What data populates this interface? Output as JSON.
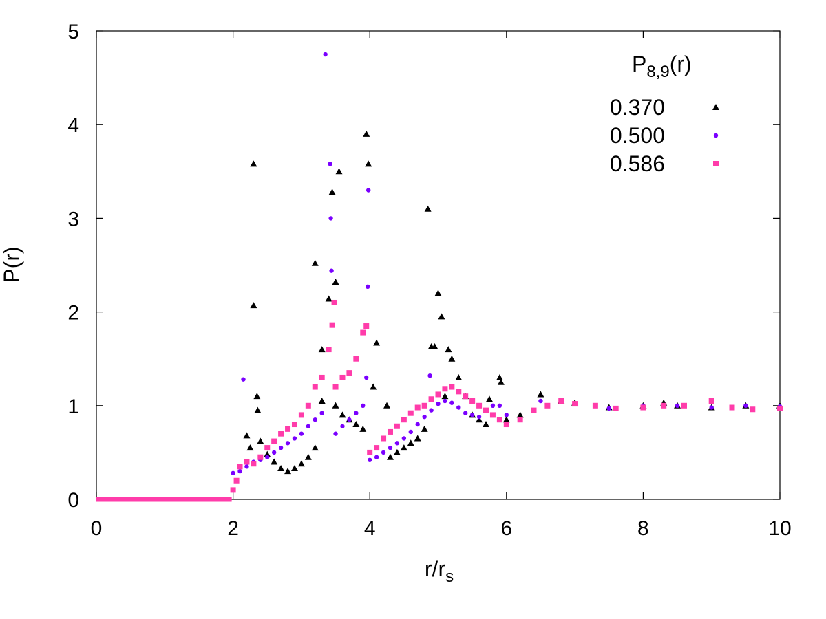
{
  "chart_data": {
    "type": "scatter",
    "xlabel": "r/r",
    "xlabel_sub": "s",
    "ylabel": "P(r)",
    "xlim": [
      0,
      10
    ],
    "ylim": [
      0,
      5
    ],
    "x_ticks": [
      0,
      2,
      4,
      6,
      8,
      10
    ],
    "y_ticks": [
      0,
      1,
      2,
      3,
      4,
      5
    ],
    "x_tick_labels": [
      "0",
      "2",
      "4",
      "6",
      "8",
      "10"
    ],
    "y_tick_labels": [
      "0",
      "1",
      "2",
      "3",
      "4",
      "5"
    ],
    "grid": false,
    "legend_position": "top-right",
    "legend_title": "P",
    "legend_title_sub": "8,9",
    "legend_title_suffix": "(r)",
    "series": [
      {
        "name": "0.370",
        "marker": "triangle",
        "color": "#000000",
        "points": [
          [
            2.3,
            3.58
          ],
          [
            2.3,
            2.07
          ],
          [
            2.35,
            1.1
          ],
          [
            2.36,
            0.95
          ],
          [
            2.2,
            0.68
          ],
          [
            2.25,
            0.55
          ],
          [
            2.4,
            0.62
          ],
          [
            2.5,
            0.48
          ],
          [
            2.6,
            0.4
          ],
          [
            2.7,
            0.33
          ],
          [
            2.8,
            0.3
          ],
          [
            2.9,
            0.33
          ],
          [
            3.0,
            0.38
          ],
          [
            3.1,
            0.45
          ],
          [
            3.2,
            0.55
          ],
          [
            3.2,
            2.52
          ],
          [
            3.3,
            1.05
          ],
          [
            3.3,
            1.6
          ],
          [
            3.4,
            2.14
          ],
          [
            3.45,
            3.28
          ],
          [
            3.5,
            2.32
          ],
          [
            3.55,
            3.5
          ],
          [
            3.5,
            1.0
          ],
          [
            3.6,
            0.9
          ],
          [
            3.7,
            0.85
          ],
          [
            3.8,
            0.8
          ],
          [
            3.9,
            0.75
          ],
          [
            3.95,
            3.9
          ],
          [
            3.98,
            3.58
          ],
          [
            4.05,
            1.2
          ],
          [
            4.1,
            1.67
          ],
          [
            4.25,
            1.0
          ],
          [
            4.3,
            0.45
          ],
          [
            4.4,
            0.5
          ],
          [
            4.5,
            0.55
          ],
          [
            4.6,
            0.6
          ],
          [
            4.7,
            0.65
          ],
          [
            4.8,
            0.75
          ],
          [
            4.85,
            3.1
          ],
          [
            4.9,
            1.63
          ],
          [
            4.95,
            1.63
          ],
          [
            5.0,
            2.2
          ],
          [
            5.05,
            1.95
          ],
          [
            5.1,
            1.1
          ],
          [
            5.15,
            1.6
          ],
          [
            5.2,
            1.5
          ],
          [
            5.3,
            1.3
          ],
          [
            5.4,
            1.1
          ],
          [
            5.5,
            0.9
          ],
          [
            5.6,
            0.85
          ],
          [
            5.7,
            0.8
          ],
          [
            5.75,
            1.07
          ],
          [
            5.9,
            1.3
          ],
          [
            5.92,
            1.25
          ],
          [
            6.0,
            0.85
          ],
          [
            6.2,
            0.9
          ],
          [
            6.5,
            1.12
          ],
          [
            6.8,
            1.05
          ],
          [
            7.0,
            1.03
          ],
          [
            7.5,
            0.98
          ],
          [
            8.0,
            1.0
          ],
          [
            8.3,
            1.03
          ],
          [
            8.5,
            1.0
          ],
          [
            9.0,
            0.98
          ],
          [
            9.5,
            1.0
          ],
          [
            10.0,
            1.0
          ]
        ]
      },
      {
        "name": "0.500",
        "marker": "circle",
        "color": "#7a00ff",
        "points": [
          [
            2.0,
            0.28
          ],
          [
            2.1,
            0.3
          ],
          [
            2.15,
            1.28
          ],
          [
            2.2,
            0.35
          ],
          [
            2.3,
            0.4
          ],
          [
            2.4,
            0.42
          ],
          [
            2.5,
            0.45
          ],
          [
            2.6,
            0.5
          ],
          [
            2.7,
            0.55
          ],
          [
            2.8,
            0.6
          ],
          [
            2.9,
            0.65
          ],
          [
            3.0,
            0.7
          ],
          [
            3.1,
            0.78
          ],
          [
            3.2,
            0.85
          ],
          [
            3.3,
            0.92
          ],
          [
            3.35,
            4.75
          ],
          [
            3.42,
            3.58
          ],
          [
            3.43,
            3.0
          ],
          [
            3.44,
            2.44
          ],
          [
            3.5,
            0.7
          ],
          [
            3.6,
            0.78
          ],
          [
            3.7,
            0.85
          ],
          [
            3.8,
            0.92
          ],
          [
            3.9,
            1.0
          ],
          [
            3.95,
            1.3
          ],
          [
            3.97,
            2.27
          ],
          [
            3.98,
            3.3
          ],
          [
            4.0,
            0.42
          ],
          [
            4.1,
            0.45
          ],
          [
            4.2,
            0.5
          ],
          [
            4.3,
            0.55
          ],
          [
            4.4,
            0.6
          ],
          [
            4.5,
            0.65
          ],
          [
            4.6,
            0.72
          ],
          [
            4.7,
            0.8
          ],
          [
            4.8,
            0.88
          ],
          [
            4.9,
            0.95
          ],
          [
            4.88,
            1.32
          ],
          [
            5.0,
            1.02
          ],
          [
            5.1,
            1.05
          ],
          [
            5.2,
            1.03
          ],
          [
            5.3,
            0.98
          ],
          [
            5.4,
            0.92
          ],
          [
            5.5,
            0.9
          ],
          [
            5.6,
            0.88
          ],
          [
            5.7,
            0.95
          ],
          [
            5.8,
            1.0
          ],
          [
            5.9,
            1.0
          ],
          [
            6.0,
            0.9
          ],
          [
            6.5,
            1.05
          ],
          [
            7.0,
            1.02
          ],
          [
            7.5,
            0.97
          ],
          [
            8.0,
            1.0
          ],
          [
            8.5,
            1.0
          ],
          [
            9.0,
            0.98
          ],
          [
            9.5,
            1.0
          ],
          [
            10.0,
            0.99
          ]
        ]
      },
      {
        "name": "0.586",
        "marker": "square",
        "color": "#ff3caa",
        "points": [
          [
            2.0,
            0.1
          ],
          [
            2.05,
            0.2
          ],
          [
            2.1,
            0.35
          ],
          [
            2.2,
            0.4
          ],
          [
            2.3,
            0.38
          ],
          [
            2.4,
            0.45
          ],
          [
            2.5,
            0.55
          ],
          [
            2.6,
            0.62
          ],
          [
            2.7,
            0.7
          ],
          [
            2.8,
            0.75
          ],
          [
            2.9,
            0.8
          ],
          [
            3.0,
            0.9
          ],
          [
            3.1,
            1.0
          ],
          [
            3.2,
            1.2
          ],
          [
            3.3,
            1.3
          ],
          [
            3.4,
            1.6
          ],
          [
            3.45,
            1.86
          ],
          [
            3.48,
            2.1
          ],
          [
            3.5,
            1.2
          ],
          [
            3.6,
            1.3
          ],
          [
            3.7,
            1.35
          ],
          [
            3.8,
            1.5
          ],
          [
            3.9,
            1.78
          ],
          [
            3.95,
            1.85
          ],
          [
            4.0,
            0.5
          ],
          [
            4.1,
            0.55
          ],
          [
            4.2,
            0.65
          ],
          [
            4.3,
            0.72
          ],
          [
            4.4,
            0.78
          ],
          [
            4.5,
            0.85
          ],
          [
            4.6,
            0.92
          ],
          [
            4.7,
            0.98
          ],
          [
            4.8,
            1.0
          ],
          [
            4.9,
            1.07
          ],
          [
            5.0,
            1.12
          ],
          [
            5.1,
            1.18
          ],
          [
            5.2,
            1.2
          ],
          [
            5.3,
            1.15
          ],
          [
            5.4,
            1.1
          ],
          [
            5.5,
            1.05
          ],
          [
            5.6,
            1.0
          ],
          [
            5.7,
            0.95
          ],
          [
            5.8,
            0.9
          ],
          [
            5.9,
            0.85
          ],
          [
            6.0,
            0.8
          ],
          [
            6.2,
            0.85
          ],
          [
            6.4,
            0.95
          ],
          [
            6.6,
            1.0
          ],
          [
            6.8,
            1.05
          ],
          [
            7.0,
            1.02
          ],
          [
            7.3,
            1.0
          ],
          [
            7.6,
            0.97
          ],
          [
            8.0,
            0.98
          ],
          [
            8.3,
            1.0
          ],
          [
            8.6,
            1.0
          ],
          [
            9.0,
            1.05
          ],
          [
            9.3,
            0.98
          ],
          [
            9.6,
            0.96
          ],
          [
            10.0,
            0.97
          ]
        ]
      }
    ]
  }
}
